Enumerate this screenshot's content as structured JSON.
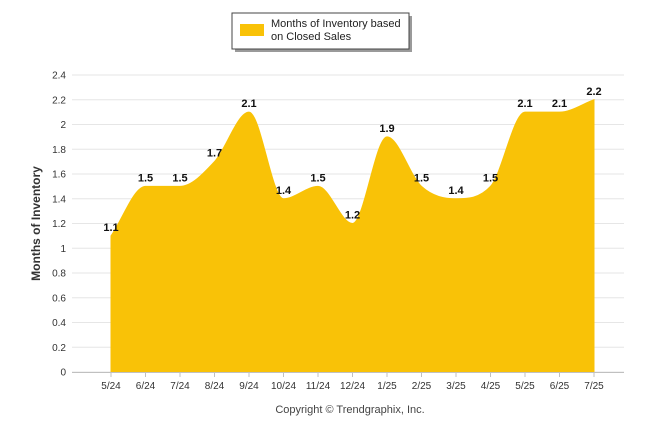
{
  "chart_data": {
    "type": "area",
    "categories": [
      "5/24",
      "6/24",
      "7/24",
      "8/24",
      "9/24",
      "10/24",
      "11/24",
      "12/24",
      "1/25",
      "2/25",
      "3/25",
      "4/25",
      "5/25",
      "6/25",
      "7/25"
    ],
    "series": [
      {
        "name": "Months of Inventory based on Closed Sales",
        "values": [
          1.1,
          1.5,
          1.5,
          1.7,
          2.1,
          1.4,
          1.5,
          1.2,
          1.9,
          1.5,
          1.4,
          1.5,
          2.1,
          2.1,
          2.2
        ],
        "data_labels": [
          "1.1",
          "1.5",
          "1.5",
          "1.7",
          "2.1",
          "1.4",
          "1.5",
          "1.2",
          "1.9",
          "1.5",
          "1.4",
          "1.5",
          "2.1",
          "2.1",
          "2.2"
        ],
        "color": "#F9C207"
      }
    ],
    "legend": {
      "position": "top-center",
      "line1": "Months of Inventory based",
      "line2": "on Closed Sales"
    },
    "ylabel": "Months of Inventory",
    "xlabel": "",
    "ylim": [
      0,
      2.4
    ],
    "yticks": [
      0,
      0.2,
      0.4,
      0.6,
      0.8,
      1,
      1.2,
      1.4,
      1.6,
      1.8,
      2,
      2.2,
      2.4
    ],
    "ytick_labels": [
      "0",
      "0.2",
      "0.4",
      "0.6",
      "0.8",
      "1",
      "1.2",
      "1.4",
      "1.6",
      "1.8",
      "2",
      "2.2",
      "2.4"
    ],
    "grid": true,
    "grid_color": "#E6E6E6",
    "footer": "Copyright © Trendgraphix, Inc."
  }
}
